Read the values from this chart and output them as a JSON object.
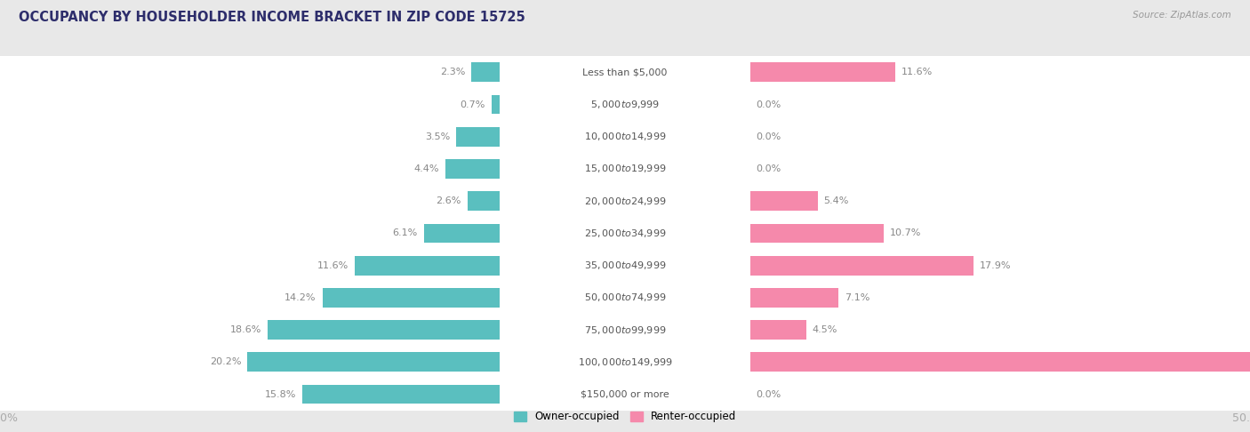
{
  "title": "OCCUPANCY BY HOUSEHOLDER INCOME BRACKET IN ZIP CODE 15725",
  "source": "Source: ZipAtlas.com",
  "categories": [
    "Less than $5,000",
    "$5,000 to $9,999",
    "$10,000 to $14,999",
    "$15,000 to $19,999",
    "$20,000 to $24,999",
    "$25,000 to $34,999",
    "$35,000 to $49,999",
    "$50,000 to $74,999",
    "$75,000 to $99,999",
    "$100,000 to $149,999",
    "$150,000 or more"
  ],
  "owner_pct": [
    2.3,
    0.7,
    3.5,
    4.4,
    2.6,
    6.1,
    11.6,
    14.2,
    18.6,
    20.2,
    15.8
  ],
  "renter_pct": [
    11.6,
    0.0,
    0.0,
    0.0,
    5.4,
    10.7,
    17.9,
    7.1,
    4.5,
    42.9,
    0.0
  ],
  "owner_color": "#5abfbf",
  "renter_color": "#f589ab",
  "bg_color": "#e8e8e8",
  "bar_bg_color": "#ffffff",
  "title_color": "#2d2d6b",
  "axis_label_color": "#aaaaaa",
  "bar_height": 0.6,
  "xlim": 50.0,
  "label_zone": 10.0,
  "legend_owner": "Owner-occupied",
  "legend_renter": "Renter-occupied"
}
